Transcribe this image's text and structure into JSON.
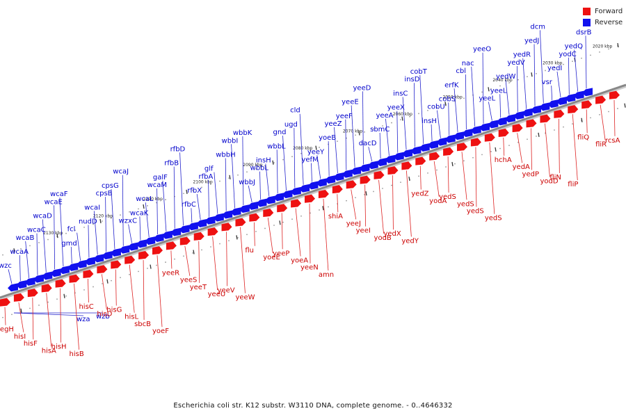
{
  "legend": {
    "forward": {
      "label": "Forward",
      "color": "#ee1111"
    },
    "reverse": {
      "label": "Reverse",
      "color": "#1111ee"
    }
  },
  "caption": "Escherichia coli str. K12 substr. W3110 DNA, complete genome. - 0..4646332",
  "colors": {
    "axis": "#888888",
    "axis_shadow": "#cccccc",
    "forward_label": "#cc0000",
    "reverse_label": "#0000cc",
    "forward_line": "#dd2222",
    "reverse_line": "#2222cc"
  },
  "scale_labels": [
    "2020 kbp",
    "2030 kbp",
    "2040 kbp",
    "2050 kbp",
    "2060 kbp",
    "2070 kbp",
    "2080 kbp",
    "2090 kbp",
    "2100 kbp",
    "2110 kbp",
    "2120 kbp",
    "2130 kbp"
  ],
  "reverse_genes": [
    "wzc",
    "wcaA",
    "wcaB",
    "wcaC",
    "wcaD",
    "wcaE",
    "wcaF",
    "gmd",
    "fcl",
    "nudD",
    "wcaI",
    "cpsB",
    "cpsG",
    "wcaJ",
    "wzxC",
    "wcaK",
    "wcaL",
    "wcaM",
    "galF",
    "rfbB",
    "rfbD",
    "rfbC",
    "rfbX",
    "rfbA",
    "glf",
    "wbbH",
    "wbbI",
    "wbbK",
    "wbbJ",
    "wbbL",
    "insH",
    "wbbL",
    "gnd",
    "ugd",
    "cld",
    "yefM",
    "yeeY",
    "yoeB",
    "yeeZ",
    "yeeF",
    "yeeE",
    "yeeD",
    "dacD",
    "sbmC",
    "yeeA",
    "yeeX",
    "insC",
    "insD",
    "cobT",
    "insH",
    "cobU",
    "cobS",
    "erfK",
    "cbl",
    "nac",
    "yeeO",
    "yeeL",
    "yeeL",
    "yedW",
    "yedV",
    "yedR",
    "yedJ",
    "dcm",
    "vsr",
    "yedI",
    "yodC",
    "yedQ",
    "dsrB"
  ],
  "forward_genes": [
    "yegH",
    "hisI",
    "hisF",
    "hisA",
    "hisH",
    "hisB",
    "hisC",
    "hisD",
    "hisG",
    "hisL",
    "sbcB",
    "yoeF",
    "yeeR",
    "yeeS",
    "yeeT",
    "yeeU",
    "yeeV",
    "yeeW",
    "flu",
    "yoeE",
    "yeeP",
    "yoeA",
    "yeeN",
    "amn",
    "shiA",
    "yeeJ",
    "yeeI",
    "yodB",
    "yedX",
    "yedY",
    "yedZ",
    "yodA",
    "yedS",
    "yedS",
    "yedS",
    "yedS",
    "hchA",
    "yedA",
    "yedP",
    "yodD",
    "fliN",
    "fliP",
    "fliQ",
    "fliR",
    "rcsA"
  ],
  "reverse_tail_genes": [
    "wza",
    "wzb"
  ]
}
